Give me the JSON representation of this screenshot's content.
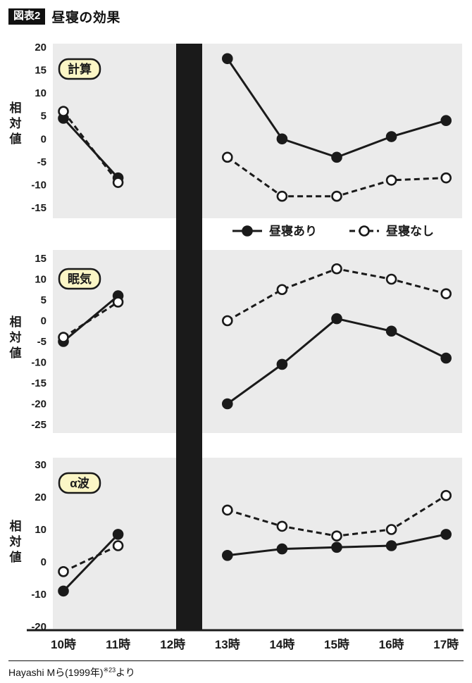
{
  "header": {
    "tag": "図表2",
    "title": "昼寝の効果"
  },
  "footer": {
    "source_main": "Hayashi Mら(1999年)",
    "source_ref": "※23",
    "source_suffix": "より"
  },
  "colors": {
    "ink": "#1a1a1a",
    "panel_bg": "#ebebeb",
    "badge_bg": "#fbf6c6",
    "nap_bar": "#1a1a1a"
  },
  "legend": [
    {
      "label": "昼寝あり",
      "line": "solid",
      "marker": "filled"
    },
    {
      "label": "昼寝なし",
      "line": "dashed",
      "marker": "open"
    }
  ],
  "axis": {
    "x_ticks": [
      "10時",
      "11時",
      "12時",
      "13時",
      "14時",
      "15時",
      "16時",
      "17時"
    ],
    "x_hours": [
      10,
      11,
      12,
      13,
      14,
      15,
      16,
      17
    ],
    "nap_bar_between": [
      12,
      13
    ]
  },
  "chart_data": [
    {
      "type": "line",
      "panel_label": "計算",
      "ylabel": "相対値",
      "ylim": [
        -15,
        20
      ],
      "yticks": [
        20,
        15,
        10,
        5,
        0,
        -5,
        -10,
        -15
      ],
      "series": [
        {
          "name": "昼寝あり",
          "line": "solid",
          "marker": "filled",
          "segments": [
            [
              [
                10,
                4.5
              ],
              [
                11,
                -8.5
              ]
            ],
            [
              [
                13,
                17.5
              ],
              [
                14,
                0
              ],
              [
                15,
                -4
              ],
              [
                16,
                0.5
              ],
              [
                17,
                4
              ]
            ]
          ]
        },
        {
          "name": "昼寝なし",
          "line": "dashed",
          "marker": "open",
          "segments": [
            [
              [
                10,
                6
              ],
              [
                11,
                -9.5
              ]
            ],
            [
              [
                13,
                -4
              ],
              [
                14,
                -12.5
              ],
              [
                15,
                -12.5
              ],
              [
                16,
                -9
              ],
              [
                17,
                -8.5
              ]
            ]
          ]
        }
      ]
    },
    {
      "type": "line",
      "panel_label": "眠気",
      "ylabel": "相対値",
      "ylim": [
        -25,
        15
      ],
      "yticks": [
        15,
        10,
        5,
        0,
        -5,
        -10,
        -15,
        -20,
        -25
      ],
      "series": [
        {
          "name": "昼寝あり",
          "line": "solid",
          "marker": "filled",
          "segments": [
            [
              [
                10,
                -5
              ],
              [
                11,
                6
              ]
            ],
            [
              [
                13,
                -20
              ],
              [
                14,
                -10.5
              ],
              [
                15,
                0.5
              ],
              [
                16,
                -2.5
              ],
              [
                17,
                -9
              ]
            ]
          ]
        },
        {
          "name": "昼寝なし",
          "line": "dashed",
          "marker": "open",
          "segments": [
            [
              [
                10,
                -4
              ],
              [
                11,
                4.5
              ]
            ],
            [
              [
                13,
                0
              ],
              [
                14,
                7.5
              ],
              [
                15,
                12.5
              ],
              [
                16,
                10
              ],
              [
                17,
                6.5
              ]
            ]
          ]
        }
      ]
    },
    {
      "type": "line",
      "panel_label": "α波",
      "ylabel": "相対値",
      "ylim": [
        -20,
        30
      ],
      "yticks": [
        30,
        20,
        10,
        0,
        -10,
        -20
      ],
      "series": [
        {
          "name": "昼寝あり",
          "line": "solid",
          "marker": "filled",
          "segments": [
            [
              [
                10,
                -9
              ],
              [
                11,
                8.5
              ]
            ],
            [
              [
                13,
                2
              ],
              [
                14,
                4
              ],
              [
                15,
                4.5
              ],
              [
                16,
                5
              ],
              [
                17,
                8.5
              ]
            ]
          ]
        },
        {
          "name": "昼寝なし",
          "line": "dashed",
          "marker": "open",
          "segments": [
            [
              [
                10,
                -3
              ],
              [
                11,
                5
              ]
            ],
            [
              [
                13,
                16
              ],
              [
                14,
                11
              ],
              [
                15,
                8
              ],
              [
                16,
                10
              ],
              [
                17,
                20.5
              ]
            ]
          ]
        }
      ]
    }
  ]
}
